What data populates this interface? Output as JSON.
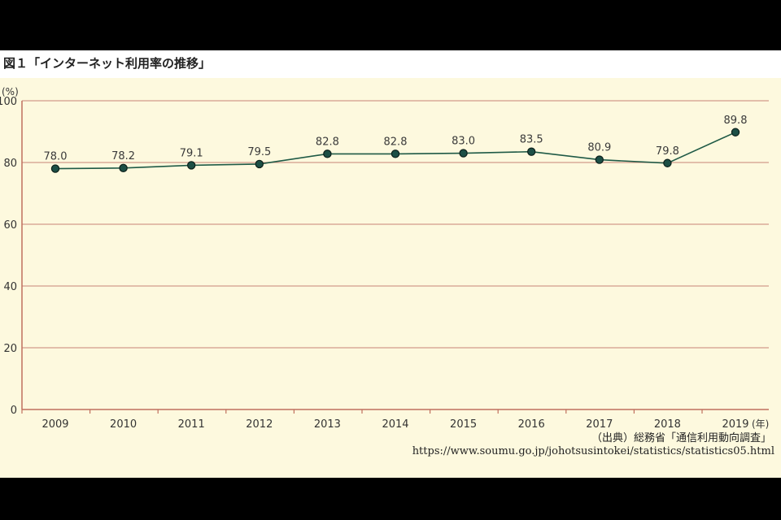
{
  "figure": {
    "title": "図１「インターネット利用率の推移」",
    "source": "（出典）総務省「通信利用動向調査」",
    "source_url": "https://www.soumu.go.jp/johotsusintokei/statistics/statistics05.html"
  },
  "chart_data": {
    "type": "line",
    "title": "図１「インターネット利用率の推移」",
    "ylabel": "(%)",
    "xlabel": "(年)",
    "x": [
      "2009",
      "2010",
      "2011",
      "2012",
      "2013",
      "2014",
      "2015",
      "2016",
      "2017",
      "2018",
      "2019"
    ],
    "series": [
      {
        "values": [
          78.0,
          78.2,
          79.1,
          79.5,
          82.8,
          82.8,
          83.0,
          83.5,
          80.9,
          79.8,
          89.8
        ],
        "labels": [
          "78.0",
          "78.2",
          "79.1",
          "79.5",
          "82.8",
          "82.8",
          "83.0",
          "83.5",
          "80.9",
          "79.8",
          "89.8"
        ]
      }
    ],
    "yticks": [
      0,
      20,
      40,
      60,
      80,
      100
    ],
    "ylim": [
      0,
      100
    ],
    "grid": true,
    "legend": "none",
    "colors": {
      "line": "#1f5a46",
      "marker_fill": "#1c4f45",
      "marker_stroke": "#0c1f1a",
      "grid": "#d29a8a",
      "axis": "#c0705e",
      "background": "#fdf9de"
    }
  }
}
